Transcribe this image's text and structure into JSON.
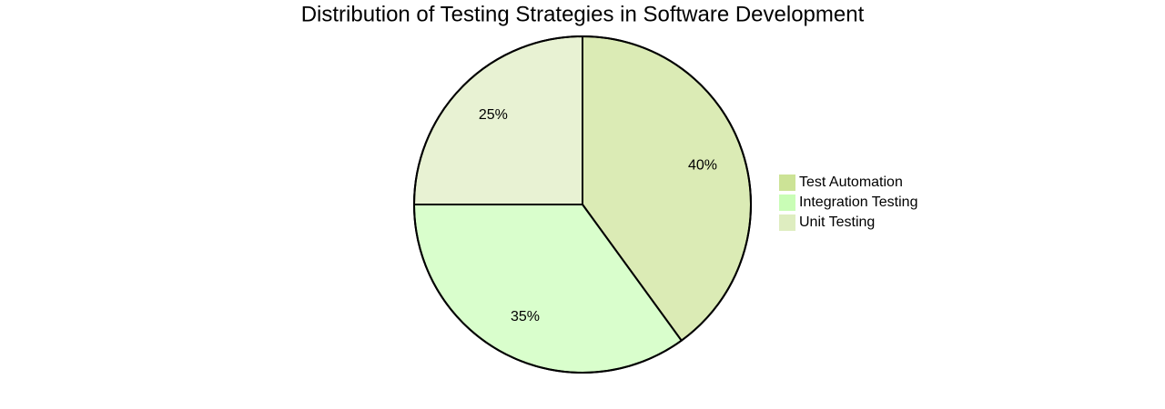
{
  "chart_data": {
    "type": "pie",
    "title": "Distribution of Testing Strategies in Software Development",
    "categories": [
      "Test Automation",
      "Integration Testing",
      "Unit Testing"
    ],
    "values": [
      40,
      35,
      25
    ],
    "value_labels": [
      "40%",
      "35%",
      "25%"
    ],
    "colors": [
      "#cce396",
      "#c9fdb6",
      "#deedc0"
    ]
  }
}
